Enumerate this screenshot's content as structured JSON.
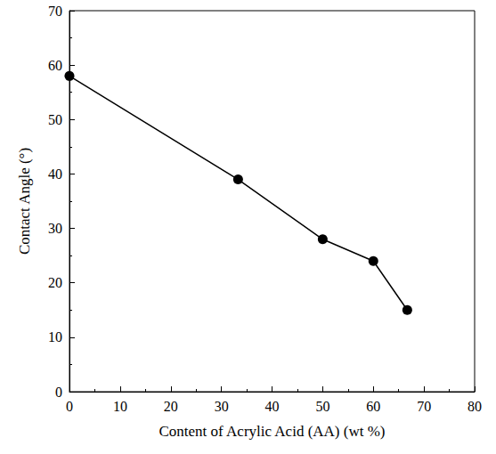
{
  "chart_data": {
    "type": "line",
    "x_label": "Content of Acrylic Acid (AA) (wt %)",
    "y_label": "Contact Angle (°)",
    "x": [
      0,
      33.3,
      50,
      60,
      66.7
    ],
    "values": [
      58,
      39,
      28,
      24,
      15
    ],
    "color": "#000000",
    "marker": "circle",
    "line_style": "solid",
    "xlim": [
      0,
      80
    ],
    "xticks": [
      0,
      10,
      20,
      30,
      40,
      50,
      60,
      70,
      80
    ],
    "ylim": [
      0,
      70
    ],
    "yticks": [
      0,
      10,
      20,
      30,
      40,
      50,
      60,
      70
    ],
    "grid": false
  }
}
